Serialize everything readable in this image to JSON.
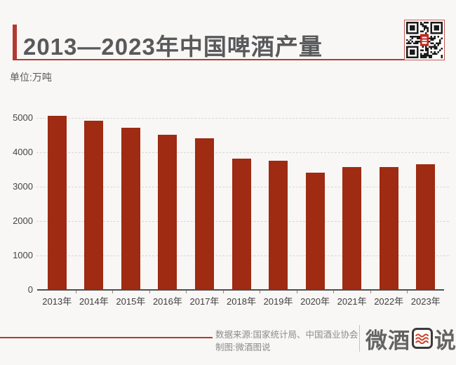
{
  "page": {
    "background": "#f8f7f5",
    "accent_red": "#b23a30",
    "bar_red": "#9e2b12"
  },
  "header": {
    "title": "2013—2023年中国啤酒产量",
    "unit_label": "单位:万吨",
    "qr_code": "qr-code-with-red-logo-center"
  },
  "chart_data": {
    "type": "bar",
    "title": "2013—2023年中国啤酒产量",
    "unit": "万吨",
    "categories": [
      "2013年",
      "2014年",
      "2015年",
      "2016年",
      "2017年",
      "2018年",
      "2019年",
      "2020年",
      "2021年",
      "2022年",
      "2023年"
    ],
    "values": [
      5061,
      4922,
      4716,
      4506,
      4402,
      3812,
      3765,
      3411,
      3562,
      3569,
      3650
    ],
    "xlabel": "",
    "ylabel": "",
    "ylim": [
      0,
      5000
    ],
    "yticks": [
      0,
      1000,
      2000,
      3000,
      4000,
      5000
    ],
    "grid": "horizontal-dashed",
    "legend": "none",
    "bar_color": "#9e2b12"
  },
  "footer": {
    "source_line": "数据来源:国家统计局、中国酒业协会",
    "credit_line": "制图:微酒图说",
    "logo": {
      "prefix": "微酒",
      "boxed_char": "图",
      "suffix": "说"
    }
  }
}
